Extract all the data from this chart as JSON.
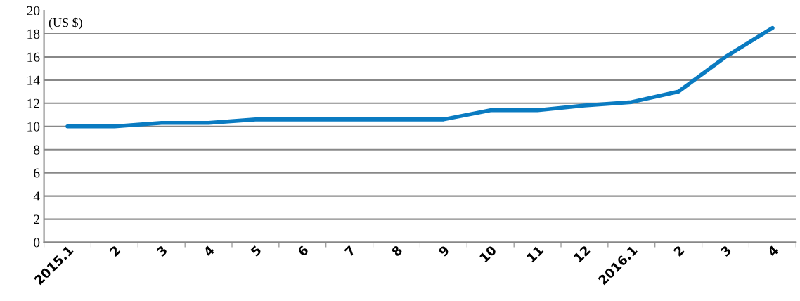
{
  "chart_data": {
    "type": "line",
    "categories": [
      "2015.1",
      "2",
      "3",
      "4",
      "5",
      "6",
      "7",
      "8",
      "9",
      "10",
      "11",
      "12",
      "2016.1",
      "2",
      "3",
      "4"
    ],
    "series": [
      {
        "color": "#0a7bc1",
        "values": [
          10,
          10,
          10.3,
          10.3,
          10.6,
          10.6,
          10.6,
          10.6,
          10.6,
          11.4,
          11.4,
          11.8,
          12.1,
          13,
          16,
          18.5
        ]
      }
    ],
    "ylim": [
      0,
      20
    ],
    "yticks": [
      0,
      2,
      4,
      6,
      8,
      10,
      12,
      14,
      16,
      18,
      20
    ],
    "grid": "y",
    "legend": false,
    "marker": "none",
    "line_style": "solid",
    "annotations": [
      "(US $)"
    ]
  }
}
